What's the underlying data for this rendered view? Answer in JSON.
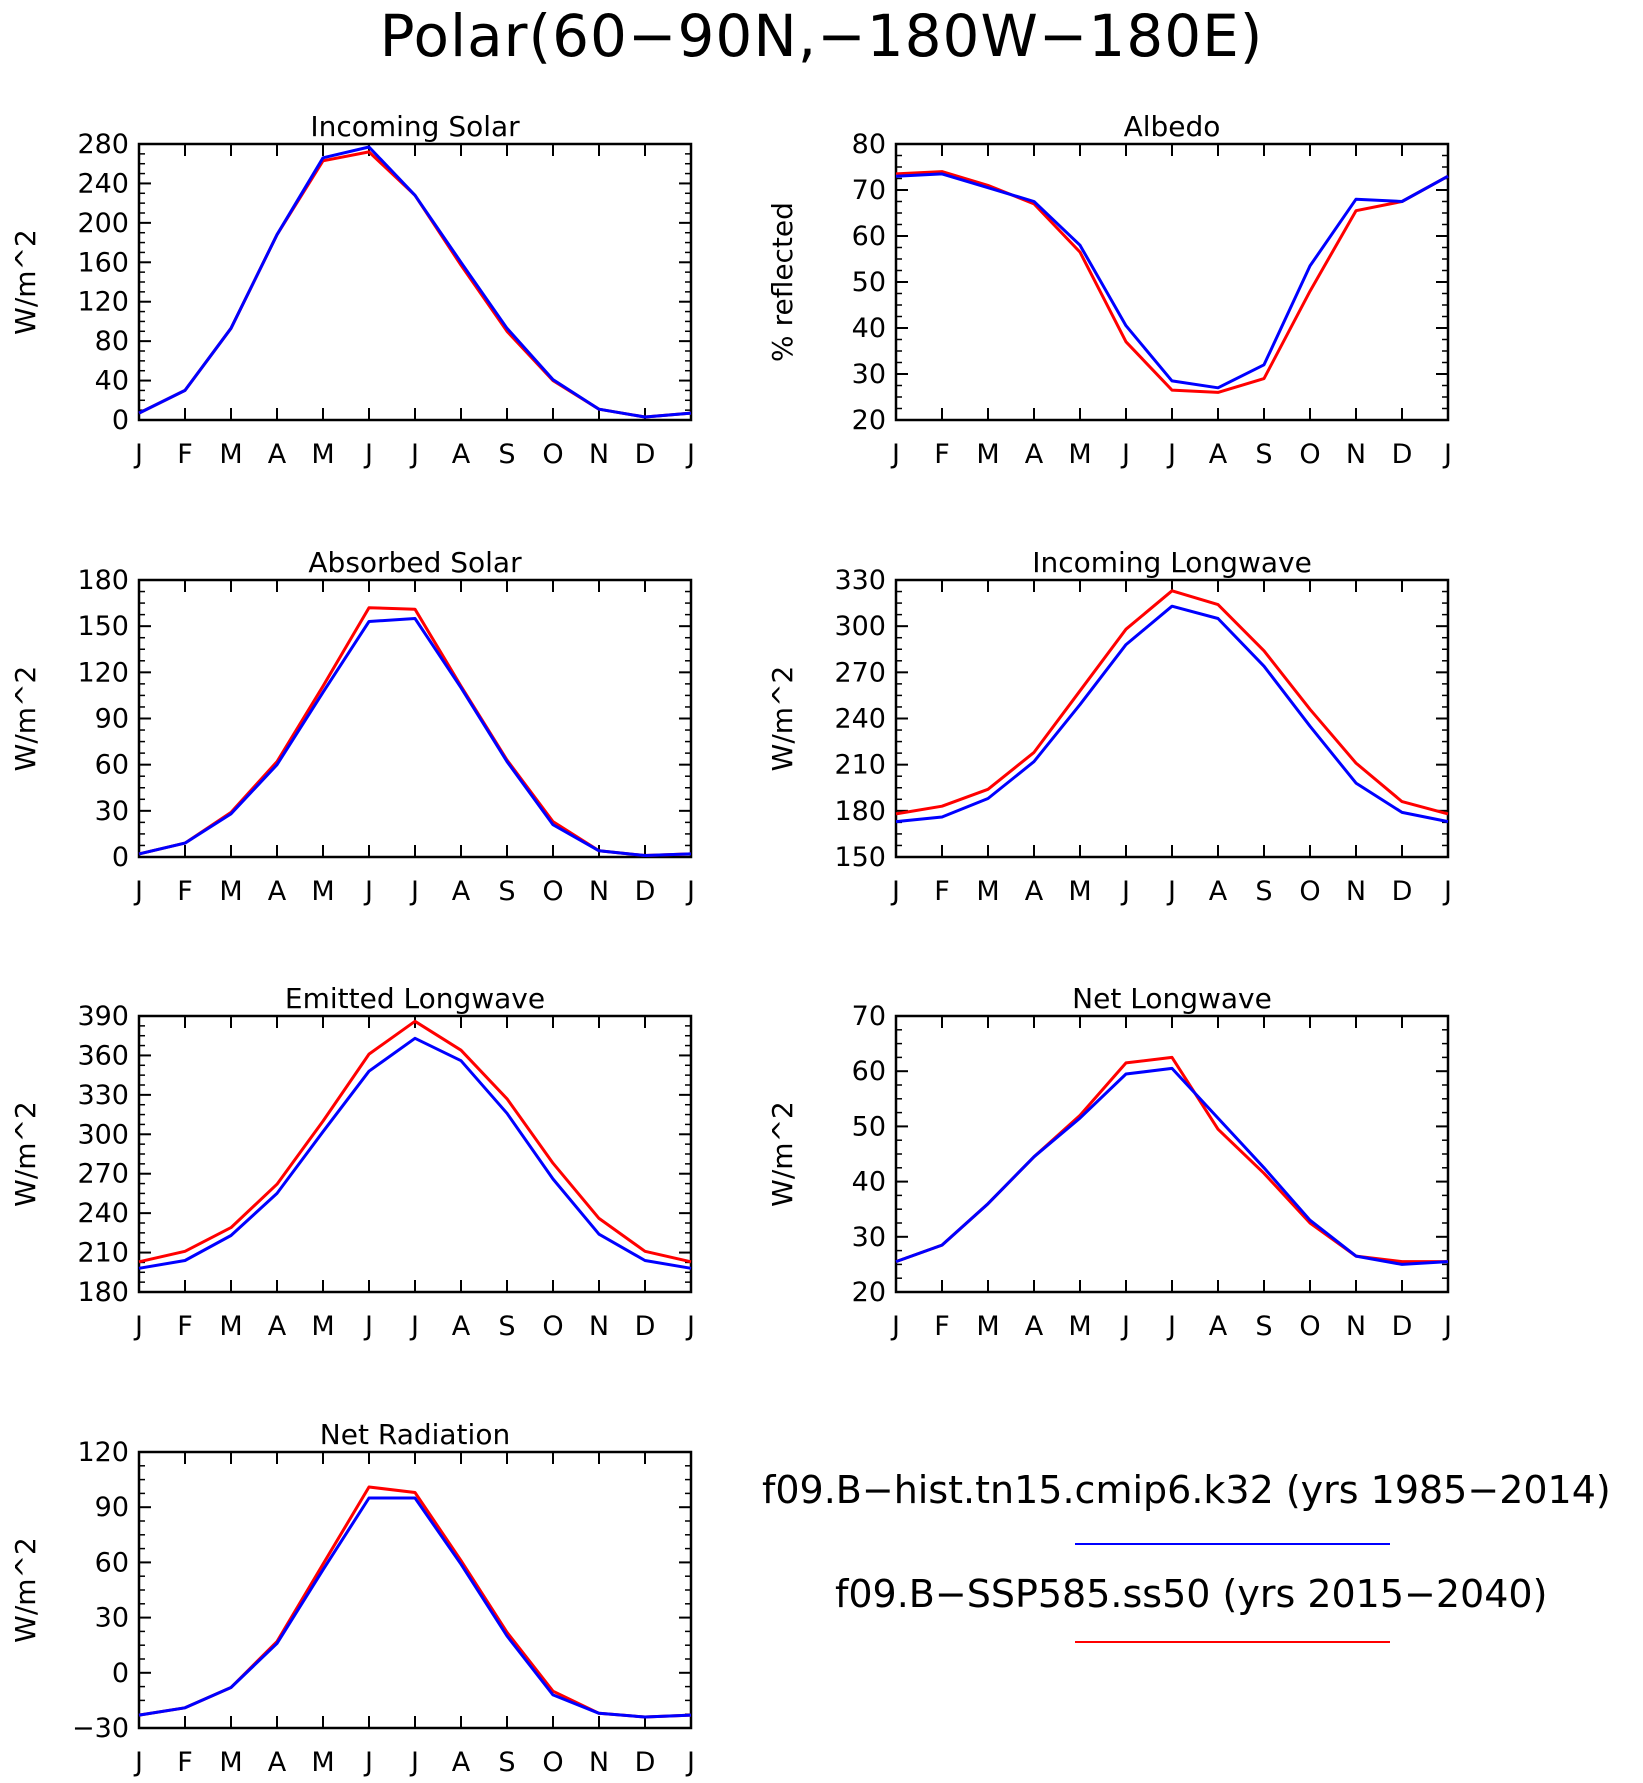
{
  "page_title": "Polar(60−90N,−180W−180E)",
  "legend": {
    "series": [
      {
        "label": "f09.B−hist.tn15.cmip6.k32 (yrs 1985−2014)",
        "color": "#0000ff"
      },
      {
        "label": "f09.B−SSP585.ss50 (yrs 2015−2040)",
        "color": "#ff0000"
      }
    ]
  },
  "chart_data": [
    {
      "type": "line",
      "title": "Incoming Solar",
      "ylabel": "W/m^2",
      "x": [
        "J",
        "F",
        "M",
        "A",
        "M",
        "J",
        "J",
        "A",
        "S",
        "O",
        "N",
        "D",
        "J"
      ],
      "ylim": [
        0,
        280
      ],
      "yticks": [
        0,
        40,
        80,
        120,
        160,
        200,
        240,
        280
      ],
      "series": [
        {
          "color": "#ff0000",
          "values": [
            7,
            30,
            93,
            188,
            263,
            272,
            228,
            157,
            90,
            40,
            11,
            3,
            7
          ]
        },
        {
          "color": "#0000ff",
          "values": [
            7,
            30,
            93,
            188,
            266,
            277,
            228,
            160,
            93,
            41,
            11,
            3,
            7
          ]
        }
      ]
    },
    {
      "type": "line",
      "title": "Albedo",
      "ylabel": "% reflected",
      "x": [
        "J",
        "F",
        "M",
        "A",
        "M",
        "J",
        "J",
        "A",
        "S",
        "O",
        "N",
        "D",
        "J"
      ],
      "ylim": [
        20,
        80
      ],
      "yticks": [
        20,
        30,
        40,
        50,
        60,
        70,
        80
      ],
      "series": [
        {
          "color": "#ff0000",
          "values": [
            73.5,
            74,
            71,
            67,
            56.5,
            37,
            26.5,
            26,
            29,
            48,
            65.5,
            67.5,
            73
          ]
        },
        {
          "color": "#0000ff",
          "values": [
            73,
            73.5,
            70.5,
            67.5,
            58,
            40.5,
            28.5,
            27,
            32,
            53.5,
            68,
            67.5,
            73
          ]
        }
      ]
    },
    {
      "type": "line",
      "title": "Absorbed Solar",
      "ylabel": "W/m^2",
      "x": [
        "J",
        "F",
        "M",
        "A",
        "M",
        "J",
        "J",
        "A",
        "S",
        "O",
        "N",
        "D",
        "J"
      ],
      "ylim": [
        0,
        180
      ],
      "yticks": [
        0,
        30,
        60,
        90,
        120,
        150,
        180
      ],
      "series": [
        {
          "color": "#ff0000",
          "values": [
            2,
            9,
            29,
            62,
            111,
            162,
            161,
            111,
            63,
            23,
            4,
            1,
            2
          ]
        },
        {
          "color": "#0000ff",
          "values": [
            2,
            9,
            28,
            60,
            107,
            153,
            155,
            110,
            62,
            21,
            4,
            1,
            2
          ]
        }
      ]
    },
    {
      "type": "line",
      "title": "Incoming Longwave",
      "ylabel": "W/m^2",
      "x": [
        "J",
        "F",
        "M",
        "A",
        "M",
        "J",
        "J",
        "A",
        "S",
        "O",
        "N",
        "D",
        "J"
      ],
      "ylim": [
        150,
        330
      ],
      "yticks": [
        150,
        180,
        210,
        240,
        270,
        300,
        330
      ],
      "series": [
        {
          "color": "#ff0000",
          "values": [
            178,
            183,
            194,
            218,
            258,
            298,
            323,
            314,
            284,
            246,
            211,
            186,
            178
          ]
        },
        {
          "color": "#0000ff",
          "values": [
            173,
            176,
            188,
            212,
            249,
            288,
            313,
            305,
            274,
            235,
            198,
            179,
            173
          ]
        }
      ]
    },
    {
      "type": "line",
      "title": "Emitted Longwave",
      "ylabel": "W/m^2",
      "x": [
        "J",
        "F",
        "M",
        "A",
        "M",
        "J",
        "J",
        "A",
        "S",
        "O",
        "N",
        "D",
        "J"
      ],
      "ylim": [
        180,
        390
      ],
      "yticks": [
        180,
        210,
        240,
        270,
        300,
        330,
        360,
        390
      ],
      "series": [
        {
          "color": "#ff0000",
          "values": [
            203,
            211,
            229,
            262,
            310,
            361,
            386,
            364,
            327,
            278,
            236,
            211,
            203
          ]
        },
        {
          "color": "#0000ff",
          "values": [
            198,
            204,
            223,
            255,
            302,
            348,
            373,
            356,
            316,
            266,
            224,
            204,
            198
          ]
        }
      ]
    },
    {
      "type": "line",
      "title": "Net Longwave",
      "ylabel": "W/m^2",
      "x": [
        "J",
        "F",
        "M",
        "A",
        "M",
        "J",
        "J",
        "A",
        "S",
        "O",
        "N",
        "D",
        "J"
      ],
      "ylim": [
        20,
        70
      ],
      "yticks": [
        20,
        30,
        40,
        50,
        60,
        70
      ],
      "series": [
        {
          "color": "#ff0000",
          "values": [
            25.5,
            28.5,
            36,
            44.5,
            52,
            61.5,
            62.5,
            49.5,
            41.5,
            32.5,
            26.5,
            25.5,
            25.5
          ]
        },
        {
          "color": "#0000ff",
          "values": [
            25.5,
            28.5,
            36,
            44.5,
            51.5,
            59.5,
            60.5,
            51.5,
            42.5,
            33,
            26.5,
            25,
            25.5
          ]
        }
      ]
    },
    {
      "type": "line",
      "title": "Net Radiation",
      "ylabel": "W/m^2",
      "x": [
        "J",
        "F",
        "M",
        "A",
        "M",
        "J",
        "J",
        "A",
        "S",
        "O",
        "N",
        "D",
        "J"
      ],
      "ylim": [
        -30,
        120
      ],
      "yticks": [
        -30,
        0,
        30,
        60,
        90,
        120
      ],
      "series": [
        {
          "color": "#ff0000",
          "values": [
            -23,
            -19,
            -8,
            17,
            59,
            101,
            98,
            61,
            22,
            -10,
            -22,
            -24,
            -23
          ]
        },
        {
          "color": "#0000ff",
          "values": [
            -23,
            -19,
            -8,
            16,
            56,
            95,
            95,
            59,
            20,
            -12,
            -22,
            -24,
            -23
          ]
        }
      ]
    }
  ]
}
